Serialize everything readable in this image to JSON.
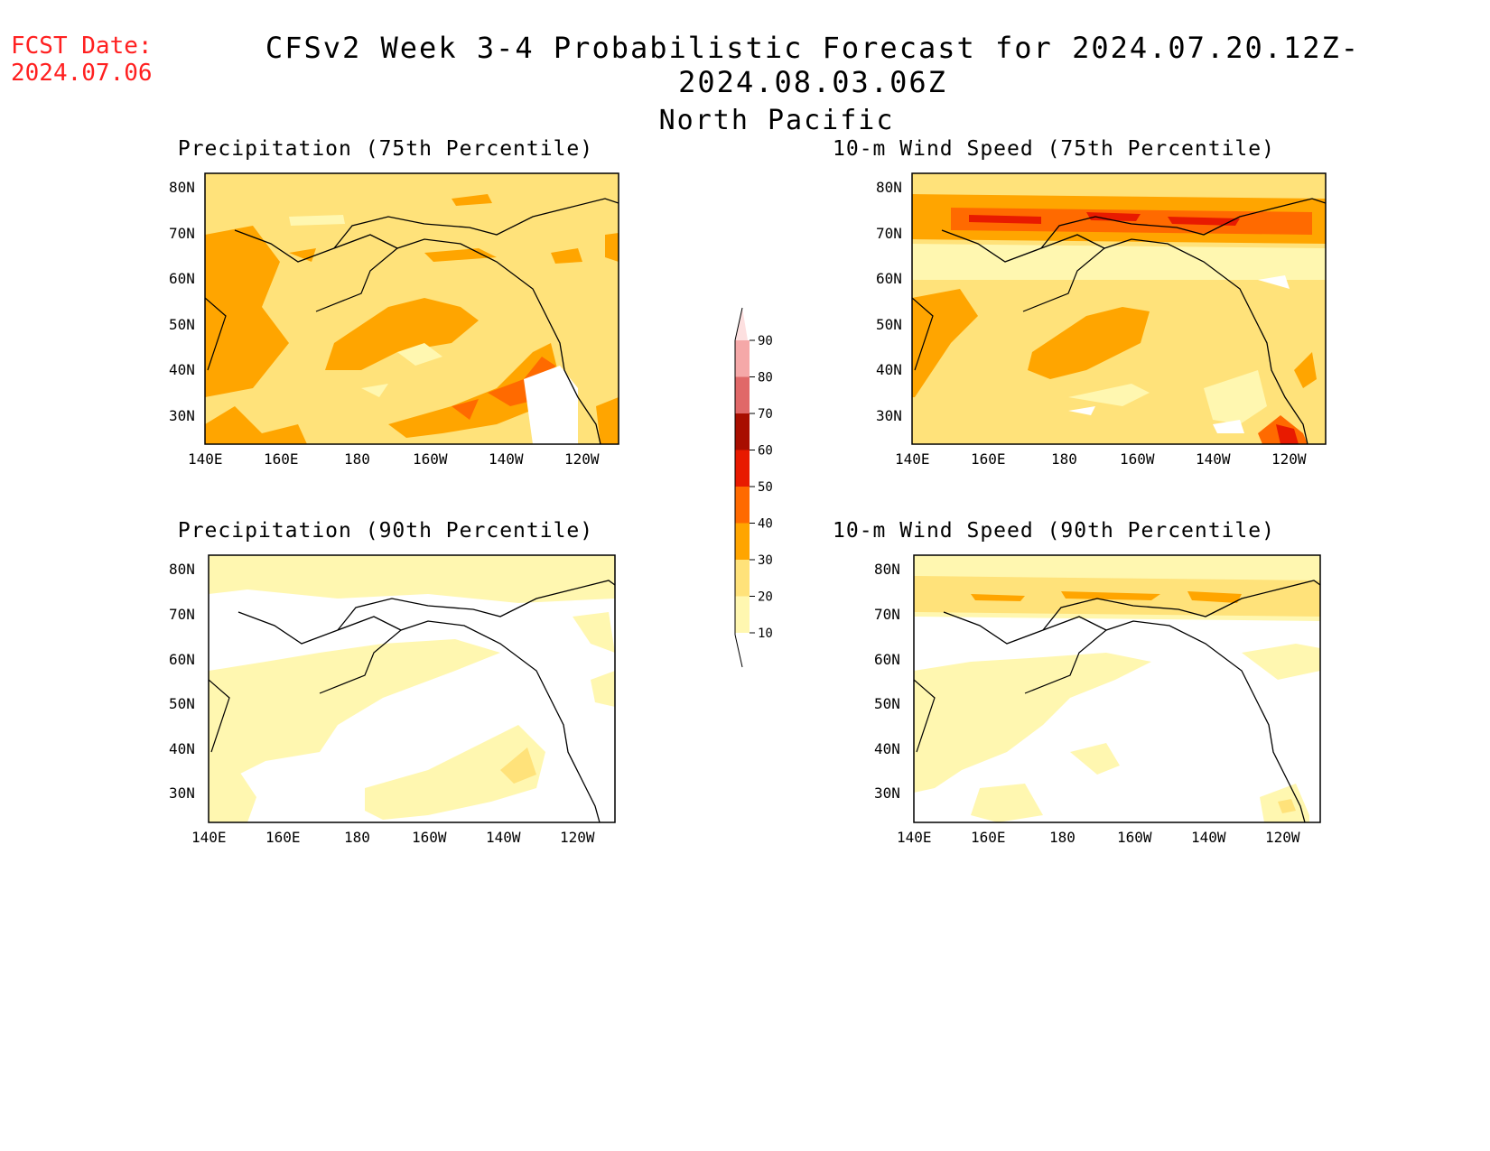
{
  "header": {
    "fcst_label": "FCST Date:",
    "fcst_date": "2024.07.06",
    "title": "CFSv2 Week 3-4 Probabilistic Forecast for 2024.07.20.12Z-2024.08.03.06Z",
    "subtitle": "North Pacific"
  },
  "axes": {
    "lat_labels": [
      "80N",
      "70N",
      "60N",
      "50N",
      "40N",
      "30N"
    ],
    "lon_labels": [
      "140E",
      "160E",
      "180",
      "160W",
      "140W",
      "120W"
    ]
  },
  "panels": [
    {
      "id": "precip75",
      "title": "Precipitation (75th Percentile)"
    },
    {
      "id": "wind75",
      "title": "10-m Wind Speed (75th Percentile)"
    },
    {
      "id": "precip90",
      "title": "Precipitation (90th Percentile)"
    },
    {
      "id": "wind90",
      "title": "10-m Wind Speed (90th Percentile)"
    }
  ],
  "colorbar": {
    "levels": [
      "90",
      "80",
      "70",
      "60",
      "50",
      "40",
      "30",
      "20",
      "10"
    ],
    "colors": {
      "10-20": "#fff7b0",
      "20-30": "#ffe27a",
      "30-40": "#ffa500",
      "40-50": "#ff6a00",
      "50-60": "#e81a00",
      "60-70": "#a80e00",
      "70-80": "#e06868",
      "80-90": "#f5a8a8",
      "90+": "#fde0e0"
    }
  },
  "map": {
    "lon_range": [
      "140E",
      "110W"
    ],
    "lat_range": [
      "25N",
      "85N"
    ]
  }
}
